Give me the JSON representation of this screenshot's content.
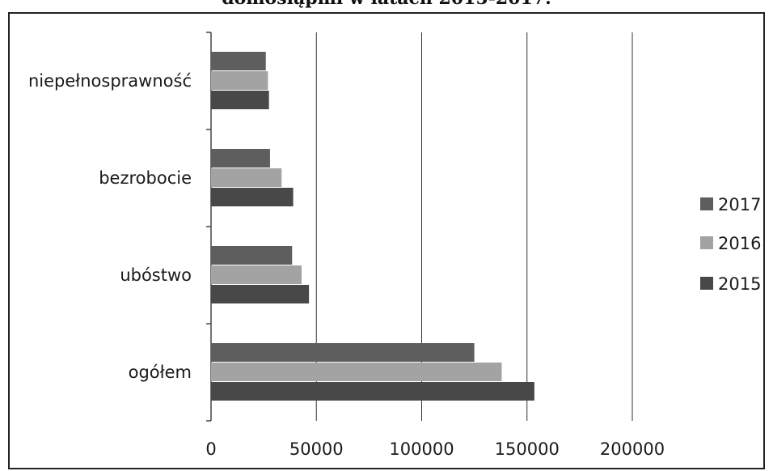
{
  "title": "domosiąpmi w latach 2015-2017.",
  "colors": {
    "s2017": "#5e5e5e",
    "s2016": "#a3a3a3",
    "s2015": "#484848",
    "grid": "#333333",
    "axis": "#444444"
  },
  "chart_data": {
    "type": "bar",
    "orientation": "horizontal",
    "title": "domosiąpmi w latach 2015-2017.",
    "categories": [
      "niepełnosprawność",
      "bezrobocie",
      "ubóstwo",
      "ogółem"
    ],
    "series": [
      {
        "name": "2017",
        "values": [
          26000,
          28000,
          38500,
          125000
        ]
      },
      {
        "name": "2016",
        "values": [
          27000,
          33500,
          43000,
          138000
        ]
      },
      {
        "name": "2015",
        "values": [
          27500,
          39000,
          46500,
          153500
        ]
      }
    ],
    "xlim": [
      0,
      200000
    ],
    "xticks": [
      "0",
      "50000",
      "100000",
      "150000",
      "200000"
    ],
    "grid": "vertical",
    "legend": "right"
  }
}
